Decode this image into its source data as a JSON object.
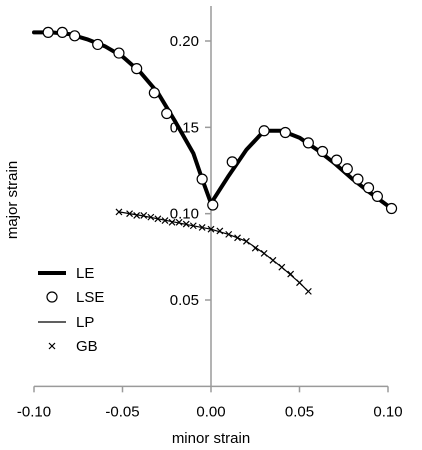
{
  "chart_data": {
    "type": "line",
    "xlabel": "minor strain",
    "ylabel": "major strain",
    "xlim": [
      -0.1,
      0.1
    ],
    "ylim": [
      0.0,
      0.22
    ],
    "x_ticks": [
      {
        "value": -0.1,
        "label": "-0.10"
      },
      {
        "value": -0.05,
        "label": "-0.05"
      },
      {
        "value": 0.0,
        "label": "0.00"
      },
      {
        "value": 0.05,
        "label": "0.05"
      },
      {
        "value": 0.1,
        "label": "0.10"
      }
    ],
    "y_ticks": [
      {
        "value": 0.05,
        "label": "0.05"
      },
      {
        "value": 0.1,
        "label": "0.10"
      },
      {
        "value": 0.15,
        "label": "0.15"
      },
      {
        "value": 0.2,
        "label": "0.20"
      }
    ],
    "grid": false,
    "legend_position": "bottom-left",
    "series": [
      {
        "name": "LE",
        "style": "thick-line",
        "color": "#000000",
        "points": [
          {
            "x": -0.1,
            "y": 0.205
          },
          {
            "x": -0.09,
            "y": 0.205
          },
          {
            "x": -0.08,
            "y": 0.204
          },
          {
            "x": -0.07,
            "y": 0.201
          },
          {
            "x": -0.06,
            "y": 0.197
          },
          {
            "x": -0.05,
            "y": 0.191
          },
          {
            "x": -0.04,
            "y": 0.182
          },
          {
            "x": -0.03,
            "y": 0.17
          },
          {
            "x": -0.02,
            "y": 0.153
          },
          {
            "x": -0.01,
            "y": 0.135
          },
          {
            "x": -0.005,
            "y": 0.12
          },
          {
            "x": 0.0,
            "y": 0.106
          },
          {
            "x": 0.01,
            "y": 0.122
          },
          {
            "x": 0.02,
            "y": 0.137
          },
          {
            "x": 0.03,
            "y": 0.148
          },
          {
            "x": 0.04,
            "y": 0.148
          },
          {
            "x": 0.05,
            "y": 0.144
          },
          {
            "x": 0.06,
            "y": 0.137
          },
          {
            "x": 0.07,
            "y": 0.129
          },
          {
            "x": 0.08,
            "y": 0.12
          },
          {
            "x": 0.09,
            "y": 0.112
          },
          {
            "x": 0.102,
            "y": 0.103
          }
        ]
      },
      {
        "name": "LSE",
        "style": "open-circles",
        "color": "#000000",
        "points": [
          {
            "x": -0.092,
            "y": 0.205
          },
          {
            "x": -0.084,
            "y": 0.205
          },
          {
            "x": -0.077,
            "y": 0.203
          },
          {
            "x": -0.064,
            "y": 0.198
          },
          {
            "x": -0.052,
            "y": 0.193
          },
          {
            "x": -0.042,
            "y": 0.184
          },
          {
            "x": -0.032,
            "y": 0.17
          },
          {
            "x": -0.025,
            "y": 0.158
          },
          {
            "x": -0.005,
            "y": 0.12
          },
          {
            "x": 0.001,
            "y": 0.105
          },
          {
            "x": 0.012,
            "y": 0.13
          },
          {
            "x": 0.03,
            "y": 0.148
          },
          {
            "x": 0.042,
            "y": 0.147
          },
          {
            "x": 0.055,
            "y": 0.141
          },
          {
            "x": 0.063,
            "y": 0.136
          },
          {
            "x": 0.071,
            "y": 0.131
          },
          {
            "x": 0.077,
            "y": 0.126
          },
          {
            "x": 0.083,
            "y": 0.12
          },
          {
            "x": 0.089,
            "y": 0.115
          },
          {
            "x": 0.094,
            "y": 0.11
          },
          {
            "x": 0.102,
            "y": 0.103
          }
        ]
      },
      {
        "name": "LP",
        "style": "thin-line",
        "color": "#000000",
        "points": [
          {
            "x": -0.052,
            "y": 0.101
          },
          {
            "x": -0.04,
            "y": 0.099
          },
          {
            "x": -0.03,
            "y": 0.097
          },
          {
            "x": -0.02,
            "y": 0.095
          },
          {
            "x": -0.01,
            "y": 0.093
          },
          {
            "x": 0.0,
            "y": 0.091
          },
          {
            "x": 0.01,
            "y": 0.088
          },
          {
            "x": 0.02,
            "y": 0.084
          },
          {
            "x": 0.03,
            "y": 0.077
          },
          {
            "x": 0.04,
            "y": 0.069
          },
          {
            "x": 0.05,
            "y": 0.06
          },
          {
            "x": 0.055,
            "y": 0.055
          }
        ]
      },
      {
        "name": "GB",
        "style": "x-markers",
        "color": "#000000",
        "points": [
          {
            "x": -0.052,
            "y": 0.101
          },
          {
            "x": -0.046,
            "y": 0.1
          },
          {
            "x": -0.042,
            "y": 0.099
          },
          {
            "x": -0.038,
            "y": 0.099
          },
          {
            "x": -0.034,
            "y": 0.098
          },
          {
            "x": -0.03,
            "y": 0.097
          },
          {
            "x": -0.026,
            "y": 0.096
          },
          {
            "x": -0.022,
            "y": 0.095
          },
          {
            "x": -0.018,
            "y": 0.095
          },
          {
            "x": -0.014,
            "y": 0.094
          },
          {
            "x": -0.01,
            "y": 0.093
          },
          {
            "x": -0.005,
            "y": 0.092
          },
          {
            "x": 0.0,
            "y": 0.091
          },
          {
            "x": 0.005,
            "y": 0.09
          },
          {
            "x": 0.01,
            "y": 0.088
          },
          {
            "x": 0.015,
            "y": 0.086
          },
          {
            "x": 0.02,
            "y": 0.084
          },
          {
            "x": 0.025,
            "y": 0.08
          },
          {
            "x": 0.03,
            "y": 0.077
          },
          {
            "x": 0.035,
            "y": 0.073
          },
          {
            "x": 0.04,
            "y": 0.069
          },
          {
            "x": 0.045,
            "y": 0.065
          },
          {
            "x": 0.05,
            "y": 0.06
          },
          {
            "x": 0.055,
            "y": 0.055
          }
        ]
      }
    ]
  }
}
